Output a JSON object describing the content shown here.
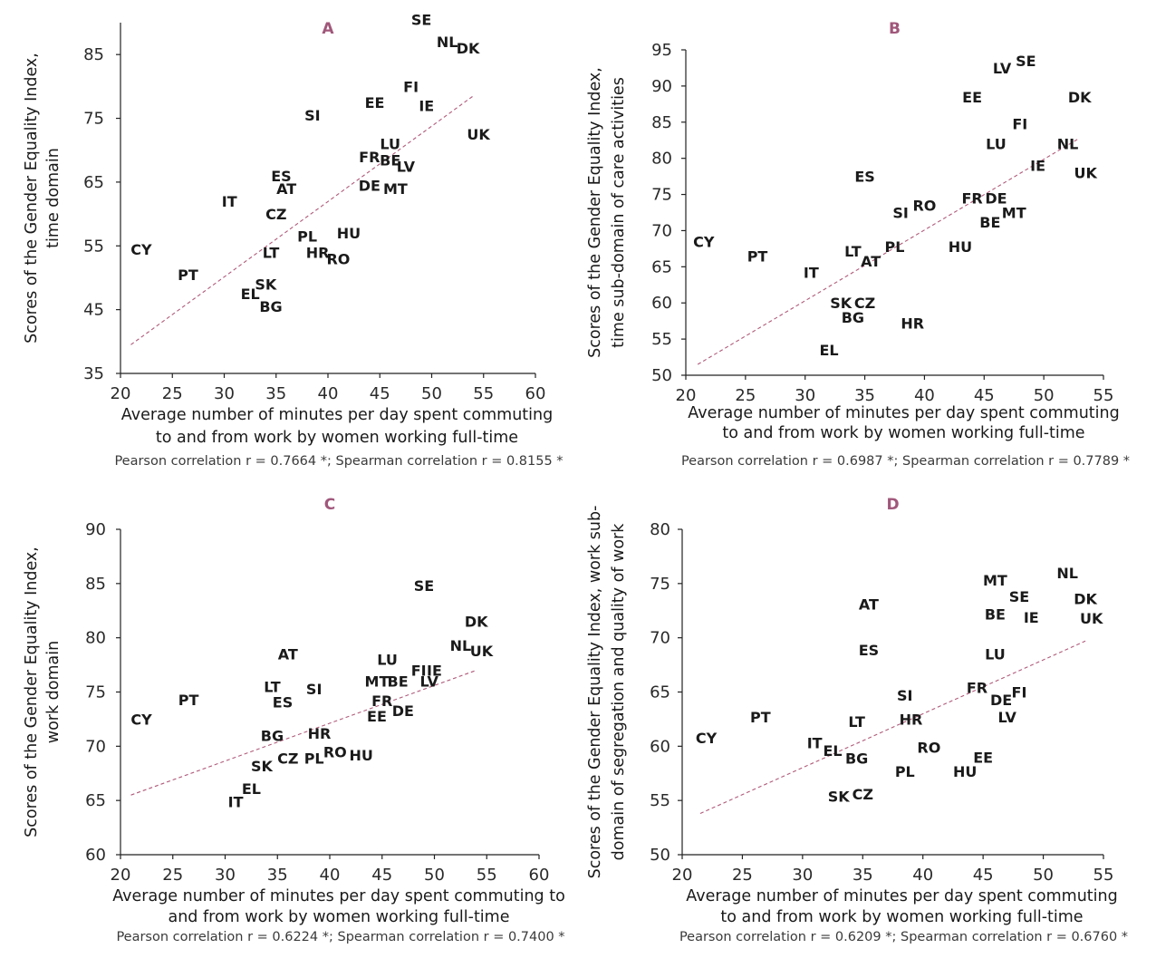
{
  "chart_data": [
    {
      "type": "scatter",
      "panel_letter": "A",
      "xlabel_lines": [
        "Average number of minutes per day spent commuting",
        "to and from work by women working full-time"
      ],
      "ylabel_lines": [
        "Scores of the Gender Equality Index,",
        "time domain"
      ],
      "xlim": [
        20,
        60
      ],
      "ylim": [
        35,
        90
      ],
      "xticks": [
        20,
        25,
        30,
        35,
        40,
        45,
        50,
        55,
        60
      ],
      "yticks": [
        35,
        45,
        55,
        65,
        75,
        85
      ],
      "trend": [
        [
          21,
          39.5
        ],
        [
          54,
          78.5
        ]
      ],
      "correlation": "Pearson correlation r = 0.7664 *; Spearman correlation r = 0.8155 *",
      "points": [
        {
          "label": "SE",
          "x": 49,
          "y": 90.5
        },
        {
          "label": "NL",
          "x": 51.5,
          "y": 87
        },
        {
          "label": "DK",
          "x": 53.5,
          "y": 86
        },
        {
          "label": "FI",
          "x": 48,
          "y": 80
        },
        {
          "label": "EE",
          "x": 44.5,
          "y": 77.5
        },
        {
          "label": "IE",
          "x": 49.5,
          "y": 77
        },
        {
          "label": "SI",
          "x": 38.5,
          "y": 75.5
        },
        {
          "label": "UK",
          "x": 54.5,
          "y": 72.5
        },
        {
          "label": "LU",
          "x": 46,
          "y": 71
        },
        {
          "label": "FR",
          "x": 44,
          "y": 69
        },
        {
          "label": "BE",
          "x": 46,
          "y": 68.5
        },
        {
          "label": "LV",
          "x": 47.5,
          "y": 67.5
        },
        {
          "label": "ES",
          "x": 35.5,
          "y": 66
        },
        {
          "label": "DE",
          "x": 44,
          "y": 64.5
        },
        {
          "label": "MT",
          "x": 46.5,
          "y": 64
        },
        {
          "label": "AT",
          "x": 36,
          "y": 64
        },
        {
          "label": "IT",
          "x": 30.5,
          "y": 62
        },
        {
          "label": "CZ",
          "x": 35,
          "y": 60
        },
        {
          "label": "HU",
          "x": 42,
          "y": 57
        },
        {
          "label": "PL",
          "x": 38,
          "y": 56.5
        },
        {
          "label": "CY",
          "x": 22,
          "y": 54.5
        },
        {
          "label": "LT",
          "x": 34.5,
          "y": 54
        },
        {
          "label": "HR",
          "x": 39,
          "y": 54
        },
        {
          "label": "RO",
          "x": 41,
          "y": 53
        },
        {
          "label": "PT",
          "x": 26.5,
          "y": 50.5
        },
        {
          "label": "SK",
          "x": 34,
          "y": 49
        },
        {
          "label": "EL",
          "x": 32.5,
          "y": 47.5
        },
        {
          "label": "BG",
          "x": 34.5,
          "y": 45.5
        }
      ]
    },
    {
      "type": "scatter",
      "panel_letter": "B",
      "xlabel_lines": [
        "Average number of minutes per day spent commuting",
        "to and from work by women working full-time"
      ],
      "ylabel_lines": [
        "Scores of the Gender Equality Index,",
        "time sub-domain of care activities"
      ],
      "xlim": [
        20,
        55
      ],
      "ylim": [
        50,
        95
      ],
      "xticks": [
        20,
        25,
        30,
        35,
        40,
        45,
        50,
        55
      ],
      "yticks": [
        50,
        55,
        60,
        65,
        70,
        75,
        80,
        85,
        90,
        95
      ],
      "trend": [
        [
          21,
          51.5
        ],
        [
          53,
          82.8
        ]
      ],
      "correlation": "Pearson correlation r = 0.6987 *; Spearman correlation r = 0.7789 *",
      "points": [
        {
          "label": "SE",
          "x": 48.5,
          "y": 93.5
        },
        {
          "label": "LV",
          "x": 46.5,
          "y": 92.5
        },
        {
          "label": "EE",
          "x": 44,
          "y": 88.5
        },
        {
          "label": "DK",
          "x": 53,
          "y": 88.5
        },
        {
          "label": "FI",
          "x": 48,
          "y": 84.8
        },
        {
          "label": "LU",
          "x": 46,
          "y": 82
        },
        {
          "label": "NL",
          "x": 52,
          "y": 82
        },
        {
          "label": "IE",
          "x": 49.5,
          "y": 79
        },
        {
          "label": "UK",
          "x": 53.5,
          "y": 78
        },
        {
          "label": "ES",
          "x": 35,
          "y": 77.5
        },
        {
          "label": "FR",
          "x": 44,
          "y": 74.5
        },
        {
          "label": "DE",
          "x": 46,
          "y": 74.5
        },
        {
          "label": "RO",
          "x": 40,
          "y": 73.5
        },
        {
          "label": "SI",
          "x": 38,
          "y": 72.5
        },
        {
          "label": "MT",
          "x": 47.5,
          "y": 72.5
        },
        {
          "label": "BE",
          "x": 45.5,
          "y": 71.2
        },
        {
          "label": "CY",
          "x": 21.5,
          "y": 68.5
        },
        {
          "label": "HU",
          "x": 43,
          "y": 67.8
        },
        {
          "label": "PL",
          "x": 37.5,
          "y": 67.8
        },
        {
          "label": "LT",
          "x": 34,
          "y": 67.2
        },
        {
          "label": "PT",
          "x": 26,
          "y": 66.5
        },
        {
          "label": "AT",
          "x": 35.5,
          "y": 65.8
        },
        {
          "label": "IT",
          "x": 30.5,
          "y": 64.2
        },
        {
          "label": "SK",
          "x": 33,
          "y": 60
        },
        {
          "label": "CZ",
          "x": 35,
          "y": 60
        },
        {
          "label": "BG",
          "x": 34,
          "y": 58
        },
        {
          "label": "HR",
          "x": 39,
          "y": 57.2
        },
        {
          "label": "EL",
          "x": 32,
          "y": 53.5
        }
      ]
    },
    {
      "type": "scatter",
      "panel_letter": "C",
      "xlabel_lines": [
        "Average number of minutes per day spent commuting to",
        "and from work by women working full-time"
      ],
      "ylabel_lines": [
        "Scores of the Gender Equality Index,",
        "work domain"
      ],
      "xlim": [
        20,
        60
      ],
      "ylim": [
        60,
        90
      ],
      "xticks": [
        20,
        25,
        30,
        35,
        40,
        45,
        50,
        55,
        60
      ],
      "yticks": [
        60,
        65,
        70,
        75,
        80,
        85,
        90
      ],
      "trend": [
        [
          21,
          65.5
        ],
        [
          54,
          77
        ]
      ],
      "correlation": "Pearson correlation r = 0.6224 *; Spearman correlation r = 0.7400 *",
      "points": [
        {
          "label": "SE",
          "x": 49,
          "y": 84.8
        },
        {
          "label": "DK",
          "x": 54,
          "y": 81.5
        },
        {
          "label": "NL",
          "x": 52.5,
          "y": 79.3
        },
        {
          "label": "UK",
          "x": 54.5,
          "y": 78.8
        },
        {
          "label": "AT",
          "x": 36,
          "y": 78.5
        },
        {
          "label": "LU",
          "x": 45.5,
          "y": 78
        },
        {
          "label": "FI",
          "x": 48.5,
          "y": 77
        },
        {
          "label": "IE",
          "x": 50,
          "y": 77
        },
        {
          "label": "MT",
          "x": 44.5,
          "y": 76
        },
        {
          "label": "BE",
          "x": 46.5,
          "y": 76
        },
        {
          "label": "LV",
          "x": 49.5,
          "y": 76
        },
        {
          "label": "LT",
          "x": 34.5,
          "y": 75.5
        },
        {
          "label": "SI",
          "x": 38.5,
          "y": 75.3
        },
        {
          "label": "PT",
          "x": 26.5,
          "y": 74.3
        },
        {
          "label": "ES",
          "x": 35.5,
          "y": 74.1
        },
        {
          "label": "FR",
          "x": 45,
          "y": 74.2
        },
        {
          "label": "DE",
          "x": 47,
          "y": 73.3
        },
        {
          "label": "EE",
          "x": 44.5,
          "y": 72.8
        },
        {
          "label": "CY",
          "x": 22,
          "y": 72.5
        },
        {
          "label": "BG",
          "x": 34.5,
          "y": 71
        },
        {
          "label": "HR",
          "x": 39,
          "y": 71.2
        },
        {
          "label": "RO",
          "x": 40.5,
          "y": 69.5
        },
        {
          "label": "HU",
          "x": 43,
          "y": 69.2
        },
        {
          "label": "CZ",
          "x": 36,
          "y": 68.9
        },
        {
          "label": "PL",
          "x": 38.5,
          "y": 68.9
        },
        {
          "label": "SK",
          "x": 33.5,
          "y": 68.2
        },
        {
          "label": "EL",
          "x": 32.5,
          "y": 66.1
        },
        {
          "label": "IT",
          "x": 31,
          "y": 64.9
        }
      ]
    },
    {
      "type": "scatter",
      "panel_letter": "D",
      "xlabel_lines": [
        "Average number of minutes per day spent commuting",
        "to and from work by women working full-time"
      ],
      "ylabel_lines": [
        "Scores of the Gender Equality Index, work sub-",
        "domain of segregation and quality of work"
      ],
      "xlim": [
        20,
        55
      ],
      "ylim": [
        50,
        80
      ],
      "xticks": [
        20,
        25,
        30,
        35,
        40,
        45,
        50,
        55
      ],
      "yticks": [
        50,
        55,
        60,
        65,
        70,
        75,
        80
      ],
      "trend": [
        [
          21.5,
          53.8
        ],
        [
          53.5,
          69.7
        ]
      ],
      "correlation": "Pearson correlation r = 0.6209 *; Spearman correlation r = 0.6760 *",
      "points": [
        {
          "label": "NL",
          "x": 52,
          "y": 76
        },
        {
          "label": "MT",
          "x": 46,
          "y": 75.3
        },
        {
          "label": "SE",
          "x": 48,
          "y": 73.8
        },
        {
          "label": "DK",
          "x": 53.5,
          "y": 73.6
        },
        {
          "label": "AT",
          "x": 35.5,
          "y": 73.1
        },
        {
          "label": "BE",
          "x": 46,
          "y": 72.2
        },
        {
          "label": "IE",
          "x": 49,
          "y": 71.9
        },
        {
          "label": "UK",
          "x": 54,
          "y": 71.8
        },
        {
          "label": "ES",
          "x": 35.5,
          "y": 68.9
        },
        {
          "label": "LU",
          "x": 46,
          "y": 68.5
        },
        {
          "label": "FR",
          "x": 44.5,
          "y": 65.4
        },
        {
          "label": "FI",
          "x": 48,
          "y": 65
        },
        {
          "label": "DE",
          "x": 46.5,
          "y": 64.3
        },
        {
          "label": "SI",
          "x": 38.5,
          "y": 64.7
        },
        {
          "label": "PT",
          "x": 26.5,
          "y": 62.7
        },
        {
          "label": "HR",
          "x": 39,
          "y": 62.5
        },
        {
          "label": "LT",
          "x": 34.5,
          "y": 62.3
        },
        {
          "label": "LV",
          "x": 47,
          "y": 62.7
        },
        {
          "label": "CY",
          "x": 22,
          "y": 60.8
        },
        {
          "label": "IT",
          "x": 31,
          "y": 60.3
        },
        {
          "label": "RO",
          "x": 40.5,
          "y": 59.9
        },
        {
          "label": "EL",
          "x": 32.5,
          "y": 59.6
        },
        {
          "label": "EE",
          "x": 45,
          "y": 59
        },
        {
          "label": "BG",
          "x": 34.5,
          "y": 58.9
        },
        {
          "label": "PL",
          "x": 38.5,
          "y": 57.7
        },
        {
          "label": "HU",
          "x": 43.5,
          "y": 57.7
        },
        {
          "label": "SK",
          "x": 33,
          "y": 55.4
        },
        {
          "label": "CZ",
          "x": 35,
          "y": 55.6
        }
      ]
    }
  ]
}
